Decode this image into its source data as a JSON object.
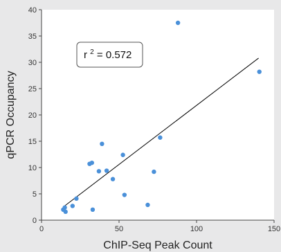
{
  "chart_data": {
    "type": "scatter",
    "title": "",
    "xlabel": "ChIP-Seq Peak Count",
    "ylabel": "qPCR Occupancy",
    "xlim": [
      0,
      150
    ],
    "ylim": [
      0,
      40
    ],
    "xticks": [
      0,
      50,
      100,
      150
    ],
    "yticks": [
      0,
      5,
      10,
      15,
      20,
      25,
      30,
      35,
      40
    ],
    "grid": false,
    "legend": "none",
    "point_color": "#4a90d9",
    "fit_line_color": "#000000",
    "annotation": {
      "base": "r",
      "exp": "2",
      "rest": " = 0.572"
    },
    "points": [
      {
        "x": 14,
        "y": 2.0
      },
      {
        "x": 15,
        "y": 2.4
      },
      {
        "x": 15.5,
        "y": 1.6
      },
      {
        "x": 20,
        "y": 2.7
      },
      {
        "x": 22.5,
        "y": 4.1
      },
      {
        "x": 31,
        "y": 10.7
      },
      {
        "x": 32.5,
        "y": 10.9
      },
      {
        "x": 33,
        "y": 2.0
      },
      {
        "x": 37,
        "y": 9.3
      },
      {
        "x": 39,
        "y": 14.5
      },
      {
        "x": 42,
        "y": 9.4
      },
      {
        "x": 46,
        "y": 7.8
      },
      {
        "x": 52.5,
        "y": 12.4
      },
      {
        "x": 53.5,
        "y": 4.8
      },
      {
        "x": 68.5,
        "y": 2.9
      },
      {
        "x": 72.5,
        "y": 9.2
      },
      {
        "x": 76.5,
        "y": 15.7
      },
      {
        "x": 88,
        "y": 37.5
      },
      {
        "x": 140.5,
        "y": 28.2
      }
    ],
    "fit_line": {
      "x": [
        14,
        140
      ],
      "y": [
        2.5,
        30.8
      ]
    }
  }
}
